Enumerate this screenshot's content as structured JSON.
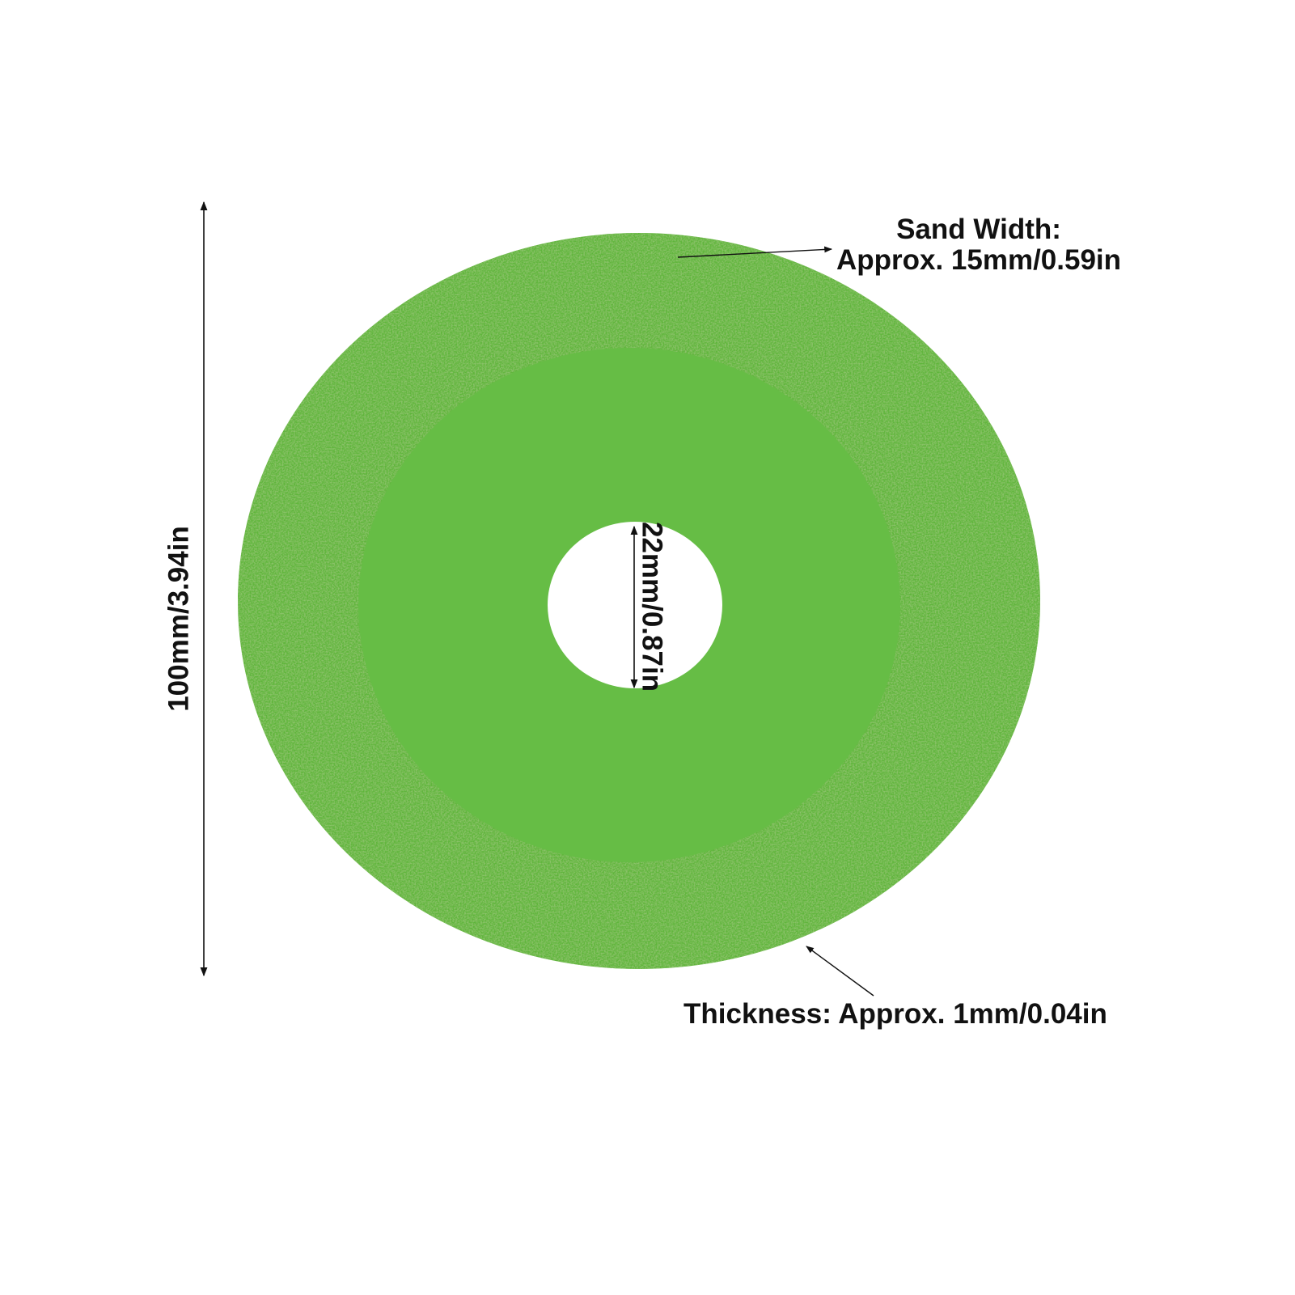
{
  "colors": {
    "background": "#ffffff",
    "outer_abrasive_band": "#5fb53b",
    "inner_disc": "#66bd45",
    "grit_speckle": "#4f9c30",
    "annotation": "#111111"
  },
  "labels": {
    "sand_width_title": "Sand Width:",
    "sand_width_value": "Approx. 15mm/0.59in",
    "thickness": "Thickness: Approx. 1mm/0.04in",
    "outer_diameter": "100mm/3.94in",
    "bore_diameter": "22mm/0.87in"
  }
}
